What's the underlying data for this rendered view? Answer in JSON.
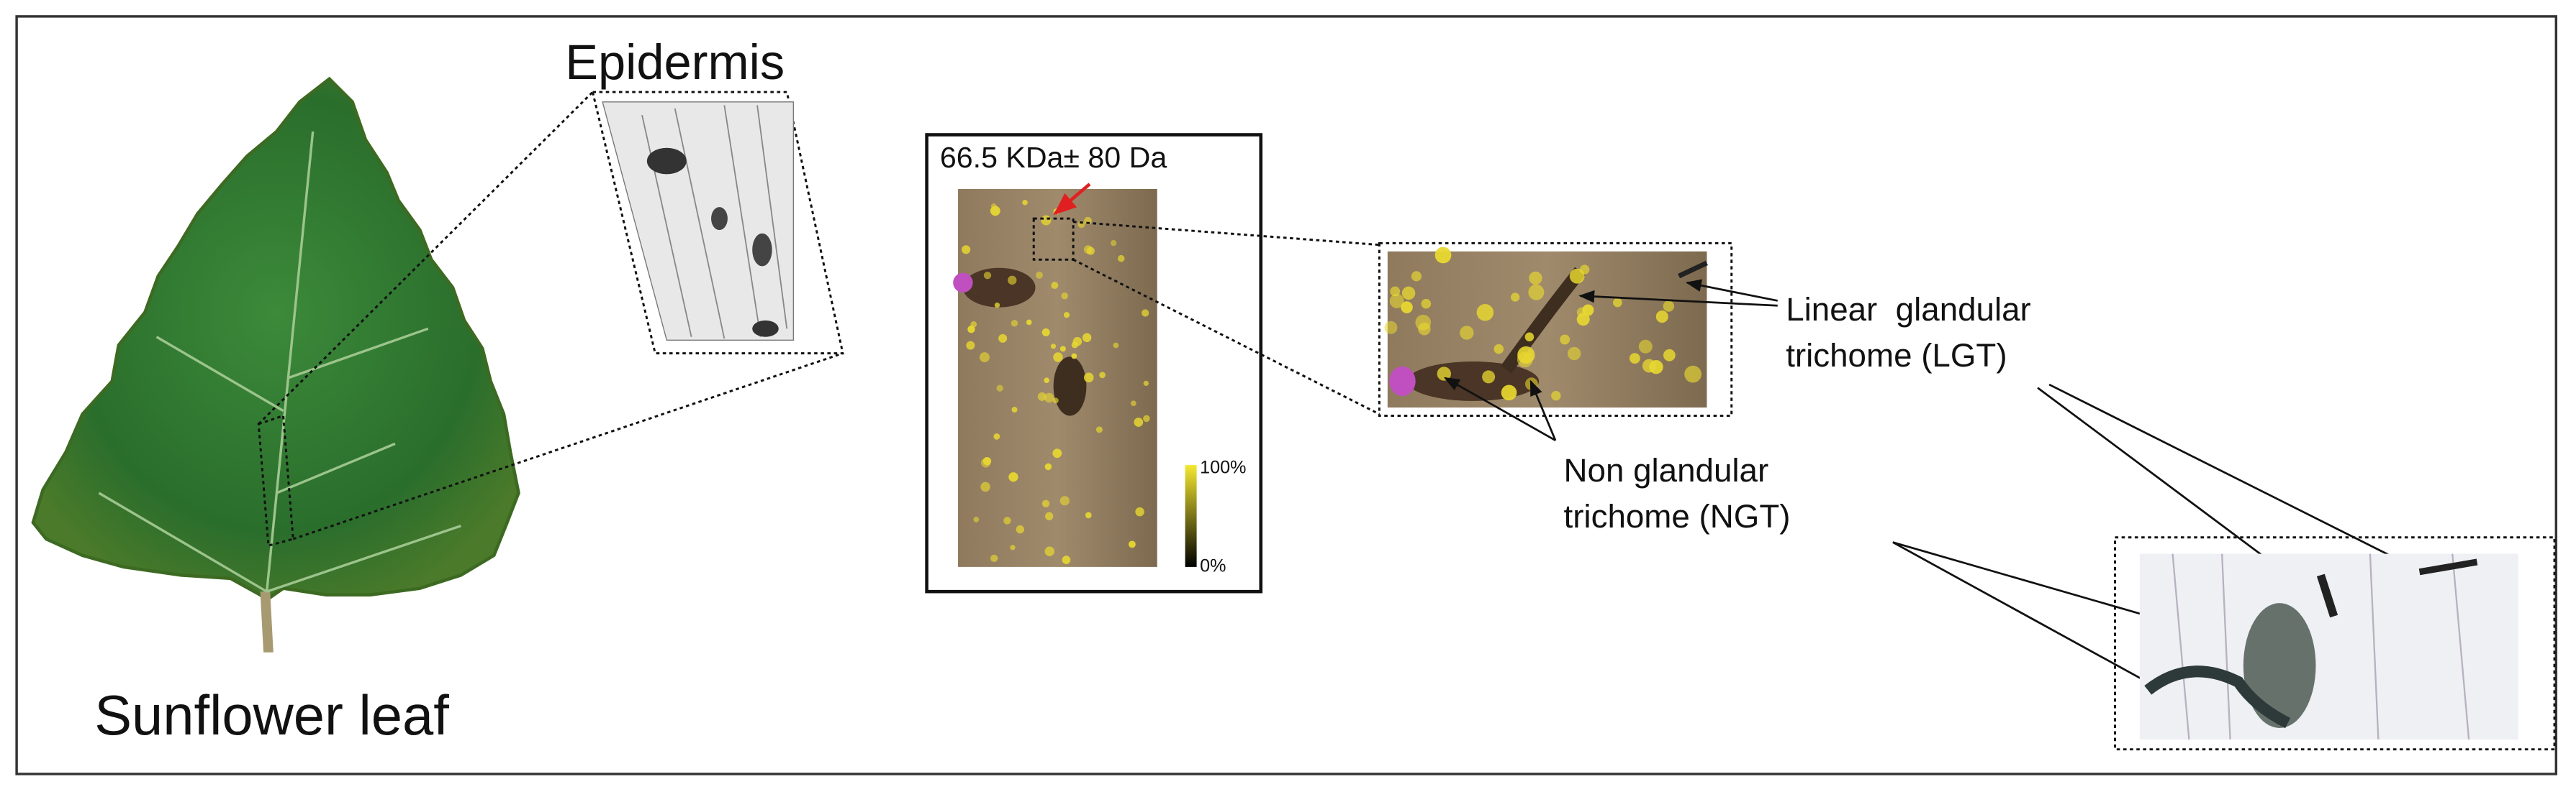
{
  "figure": {
    "leaf_label": "Sunflower leaf",
    "epidermis_label": "Epidermis",
    "ms_image": {
      "title": "66.5 KDa± 80 Da",
      "scale_max": "100%",
      "scale_min": "0%"
    },
    "lgt_label": [
      "Linear  glandular",
      "trichome (LGT)"
    ],
    "ngt_label": [
      "Non glandular",
      "trichome (NGT)"
    ]
  }
}
